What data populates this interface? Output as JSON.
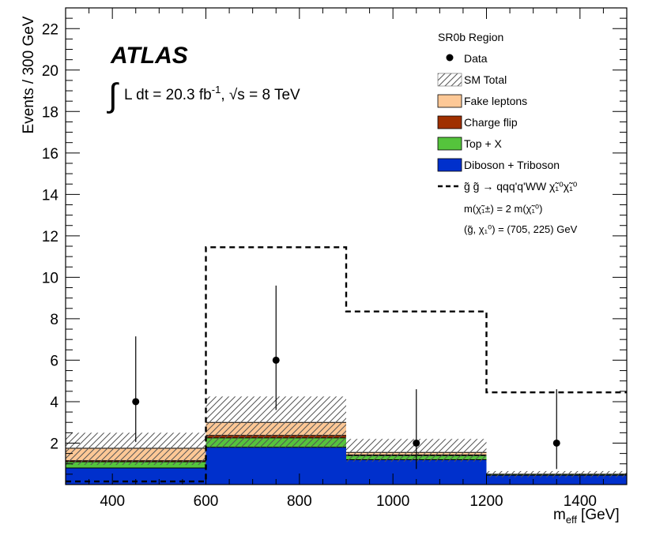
{
  "chart_data": {
    "type": "bar",
    "xlabel": "m",
    "xlabel_sub": "eff",
    "xlabel_unit": "[GeV]",
    "ylabel": "Events / 300 GeV",
    "xlim": [
      300,
      1500
    ],
    "ylim": [
      0,
      23
    ],
    "x_ticks": [
      "400",
      "600",
      "800",
      "1000",
      "1200",
      "1400"
    ],
    "y_ticks": [
      "2",
      "4",
      "6",
      "8",
      "10",
      "12",
      "14",
      "16",
      "18",
      "20",
      "22"
    ],
    "bins": [
      [
        300,
        600
      ],
      [
        600,
        900
      ],
      [
        900,
        1200
      ],
      [
        1200,
        1500
      ]
    ],
    "stack_series": [
      {
        "name": "Diboson + Triboson",
        "values": [
          0.8,
          1.8,
          1.2,
          0.45
        ],
        "color": "#0030cc"
      },
      {
        "name": "Top + X",
        "values": [
          0.3,
          0.45,
          0.2,
          0.05
        ],
        "color": "#55c43c"
      },
      {
        "name": "Charge flip",
        "values": [
          0.05,
          0.12,
          0.03,
          0.0
        ],
        "color": "#a03000"
      },
      {
        "name": "Fake leptons",
        "values": [
          0.6,
          0.63,
          0.12,
          0.0
        ],
        "color": "#fdc896"
      }
    ],
    "sm_total": {
      "name": "SM Total",
      "values": [
        1.75,
        3.0,
        1.55,
        0.5
      ],
      "err_low": [
        0.95,
        1.8,
        1.1,
        0.35
      ],
      "err_high": [
        2.5,
        4.25,
        2.2,
        0.65
      ]
    },
    "data": {
      "name": "Data",
      "x": [
        450,
        750,
        1050,
        1350
      ],
      "y": [
        4,
        6,
        2,
        2
      ],
      "err_low": [
        2.05,
        3.6,
        0.75,
        0.75
      ],
      "err_high": [
        7.15,
        9.6,
        4.6,
        4.6
      ]
    },
    "signal": {
      "name": "g̃ g̃ → qqq'q'WW χ̃₁⁰χ̃₁⁰",
      "values": [
        0.15,
        11.45,
        8.35,
        4.45
      ]
    },
    "legend_title": "SR0b Region",
    "legend_note_1": "m(χ̃₁±) = 2 m(χ̃₁⁰)",
    "legend_note_2": "(g̃, χ₁⁰) = (705, 225) GeV",
    "atlas_label": "ATLAS",
    "lumi_label": "L dt = 20.3 fb",
    "lumi_exp": "-1",
    "energy_label": ", √s = 8 TeV",
    "legend_position": "top-right",
    "grid": false
  }
}
